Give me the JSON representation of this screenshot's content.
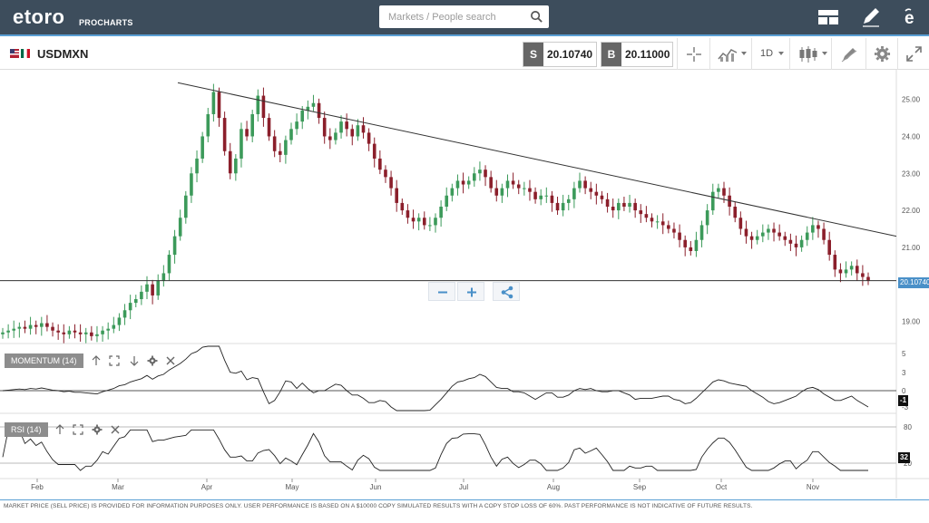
{
  "app": {
    "logo_text": "etoro",
    "logo_sub": "PROCHARTS",
    "search_placeholder": "Markets / People search",
    "icons": [
      "layout-icon",
      "pencil-icon",
      "etoro-e-icon"
    ]
  },
  "toolbar": {
    "symbol": "USDMXN",
    "sell_label": "S",
    "sell_price": "20.10740",
    "buy_label": "B",
    "buy_price": "20.11000",
    "timeframe": "1D",
    "icons": [
      "crosshair-icon",
      "chart-type-icon",
      "candles-icon",
      "draw-tools-icon",
      "gear-icon",
      "expand-icon"
    ]
  },
  "chart_data": {
    "type": "candlestick",
    "x_tick_labels": [
      "Feb",
      "Mar",
      "Apr",
      "May",
      "Jun",
      "Jul",
      "Aug",
      "Sep",
      "Oct",
      "Nov"
    ],
    "y_tick_labels": [
      "25.00",
      "24.00",
      "23.00",
      "22.00",
      "21.00",
      "19.00"
    ],
    "ylim": [
      18.4,
      25.8
    ],
    "current_price_label": "20.10740",
    "horizontal_line": 20.1,
    "trend_line": [
      {
        "month": "Mar",
        "y": 25.45
      },
      {
        "month": "Nov+",
        "y": 21.3
      }
    ],
    "closes": [
      18.7,
      18.75,
      18.8,
      18.85,
      18.8,
      18.9,
      18.85,
      18.95,
      18.85,
      18.75,
      18.7,
      18.65,
      18.75,
      18.7,
      18.65,
      18.7,
      18.6,
      18.65,
      18.75,
      18.8,
      18.9,
      19.1,
      19.3,
      19.5,
      19.6,
      19.8,
      20.0,
      19.7,
      20.1,
      20.3,
      20.8,
      21.3,
      21.8,
      22.4,
      23.0,
      23.4,
      24.0,
      24.6,
      25.2,
      24.5,
      23.6,
      23.0,
      23.4,
      24.2,
      24.0,
      24.6,
      25.1,
      24.5,
      24.0,
      23.6,
      23.5,
      23.9,
      24.2,
      24.4,
      24.7,
      24.8,
      24.9,
      24.5,
      24.0,
      23.9,
      24.1,
      24.4,
      24.2,
      24.0,
      24.3,
      24.1,
      23.8,
      23.4,
      23.1,
      22.9,
      22.6,
      22.2,
      22.0,
      21.8,
      21.7,
      21.8,
      21.6,
      21.6,
      21.8,
      22.1,
      22.4,
      22.6,
      22.8,
      22.7,
      22.8,
      23.0,
      23.1,
      22.9,
      22.6,
      22.4,
      22.6,
      22.8,
      22.7,
      22.6,
      22.6,
      22.5,
      22.3,
      22.4,
      22.4,
      22.2,
      22.0,
      22.2,
      22.3,
      22.6,
      22.8,
      22.6,
      22.5,
      22.4,
      22.3,
      22.1,
      22.0,
      22.2,
      22.1,
      22.2,
      22.0,
      21.9,
      21.8,
      21.7,
      21.7,
      21.6,
      21.5,
      21.4,
      21.2,
      21.0,
      20.9,
      21.2,
      21.6,
      22.0,
      22.5,
      22.6,
      22.4,
      22.1,
      21.8,
      21.5,
      21.3,
      21.2,
      21.3,
      21.4,
      21.5,
      21.4,
      21.3,
      21.2,
      21.1,
      21.0,
      21.2,
      21.4,
      21.6,
      21.5,
      21.2,
      20.8,
      20.4,
      20.3,
      20.4,
      20.5,
      20.3,
      20.2,
      20.1
    ]
  },
  "momentum": {
    "label": "MOMENTUM (14)",
    "ticks": [
      "5",
      "3",
      "0",
      "-3"
    ],
    "current": "-1",
    "icons": [
      "arrow-up-icon",
      "maximize-icon",
      "arrow-down-icon",
      "gear-icon",
      "close-icon"
    ]
  },
  "rsi": {
    "label": "RSI (14)",
    "ticks": [
      "80",
      "20"
    ],
    "current": "32",
    "icons": [
      "arrow-up-icon",
      "maximize-icon",
      "gear-icon",
      "close-icon"
    ]
  },
  "footer": {
    "disclaimer": "MARKET PRICE (SELL PRICE) IS PROVIDED FOR INFORMATION PURPOSES ONLY. USER PERFORMANCE IS BASED ON A $10000 COPY SIMULATED RESULTS WITH A COPY STOP LOSS OF 60%. PAST PERFORMANCE IS NOT INDICATIVE OF FUTURE RESULTS."
  },
  "colors": {
    "topbar": "#3d4d5c",
    "accent": "#5a9fd4",
    "up_candle": "#3c9a5a",
    "down_candle": "#8b1f2b",
    "price_flag": "#4a90c8"
  }
}
